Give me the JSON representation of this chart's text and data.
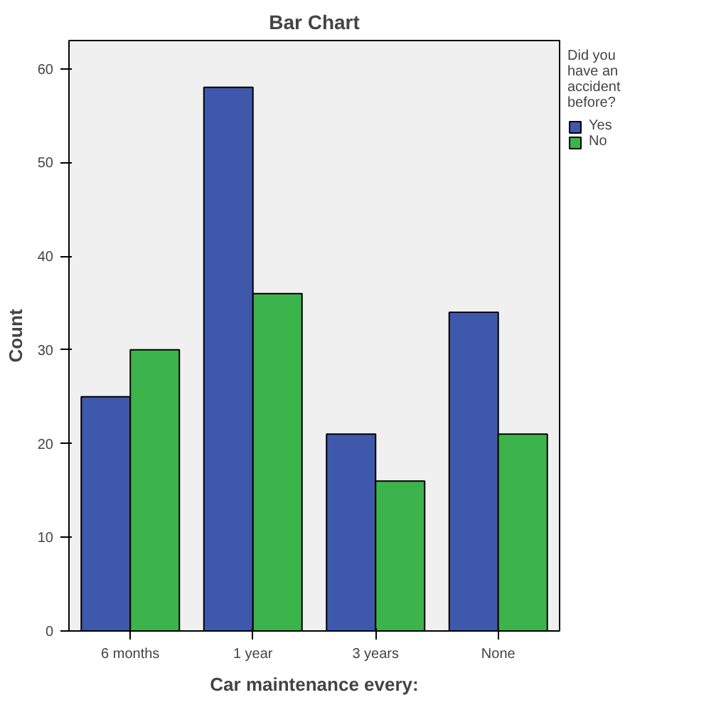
{
  "chart_data": {
    "type": "bar",
    "title": "Bar Chart",
    "xlabel": "Car maintenance every:",
    "ylabel": "Count",
    "legend_title": "Did you have an accident before?",
    "categories": [
      "6 months",
      "1 year",
      "3 years",
      "None"
    ],
    "series": [
      {
        "name": "Yes",
        "color": "#3e58ac",
        "values": [
          25,
          58,
          21,
          34
        ]
      },
      {
        "name": "No",
        "color": "#3cb44b",
        "values": [
          30,
          36,
          16,
          21
        ]
      }
    ],
    "ylim": [
      0,
      63
    ],
    "yticks": [
      0,
      10,
      20,
      30,
      40,
      50,
      60
    ],
    "legend": "right"
  }
}
